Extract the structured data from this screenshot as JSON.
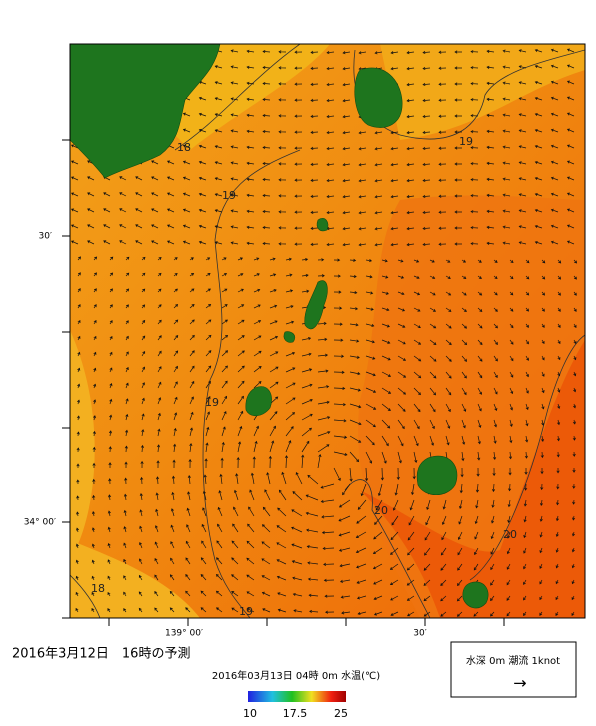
{
  "title": "2016年3月12日　16時の予測",
  "caption": "2016年03月13日 04時 0m 水温(℃)",
  "colorbar_labels": [
    "10",
    "17.5",
    "25"
  ],
  "lat_labels": [
    "30′",
    "34° 00′"
  ],
  "lon_labels": [
    "139° 00′",
    "30′"
  ],
  "current_legend": {
    "text": "水深 0m 潮流 1knot",
    "arrow": "→"
  },
  "contour_labels": [
    "18",
    "19",
    "19",
    "19",
    "20",
    "20",
    "18",
    "19"
  ]
}
